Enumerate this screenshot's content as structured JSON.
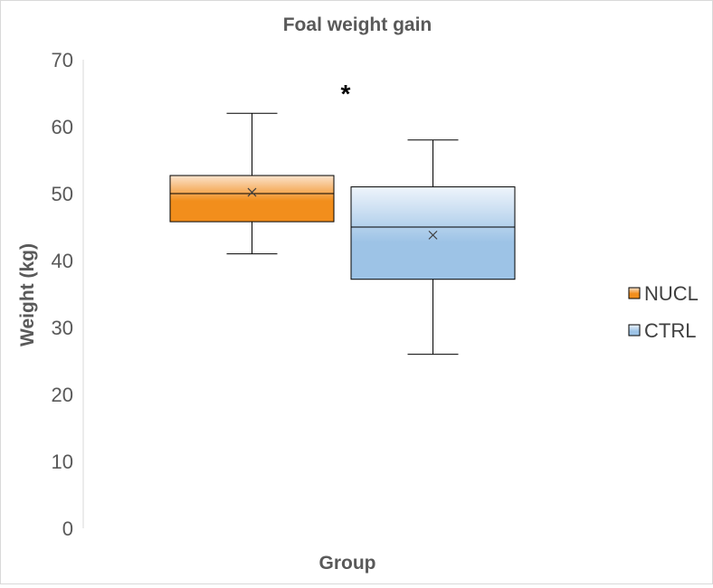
{
  "chart_data": {
    "type": "box",
    "title": "Foal weight gain",
    "xlabel": "Group",
    "ylabel": "Weight (kg)",
    "ylim": [
      0,
      70
    ],
    "yticks": [
      0,
      10,
      20,
      30,
      40,
      50,
      60,
      70
    ],
    "legend_position": "right",
    "grid": false,
    "annotation": "*",
    "series": [
      {
        "name": "NUCL",
        "color": "#f28e1c",
        "color_light": "#fbe3cd",
        "min": 41,
        "q1": 45.8,
        "median": 50,
        "q3": 52.7,
        "max": 62,
        "mean": 50.2
      },
      {
        "name": "CTRL",
        "color": "#9dc3e6",
        "color_light": "#eef4fb",
        "min": 26,
        "q1": 37.2,
        "median": 45,
        "q3": 51,
        "max": 58,
        "mean": 43.8
      }
    ]
  }
}
